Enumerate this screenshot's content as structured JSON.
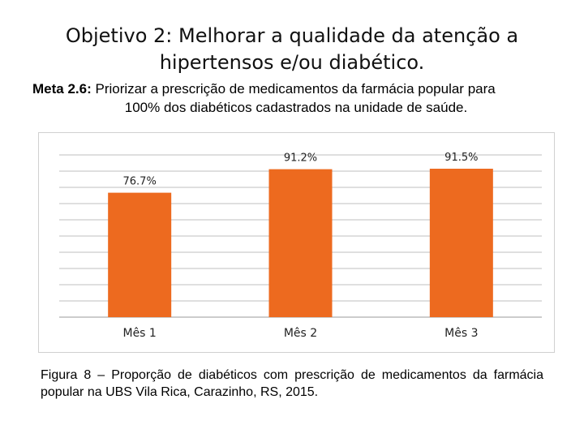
{
  "slide": {
    "title_line1": "Objetivo 2: Melhorar a qualidade da atenção a",
    "title_line2": "hipertensos e/ou diabético.",
    "meta_label": "Meta 2.6:",
    "meta_text_line1": "Priorizar a prescrição de medicamentos da farmácia popular para",
    "meta_text_line2": "100% dos diabéticos cadastrados na unidade de saúde.",
    "caption": "Figura 8 – Proporção de diabéticos com prescrição de medicamentos da farmácia popular na UBS Vila Rica, Carazinho, RS, 2015."
  },
  "chart_data": {
    "type": "bar",
    "categories": [
      "Mês 1",
      "Mês 2",
      "Mês 3"
    ],
    "values": [
      76.7,
      91.2,
      91.5
    ],
    "data_labels": [
      "76.7%",
      "91.2%",
      "91.5%"
    ],
    "title": "",
    "xlabel": "",
    "ylabel": "",
    "ylim": [
      0,
      100
    ],
    "grid": true,
    "legend": "none",
    "bar_color": "#ED6A1F",
    "grid_color": "#bfbfbf"
  }
}
